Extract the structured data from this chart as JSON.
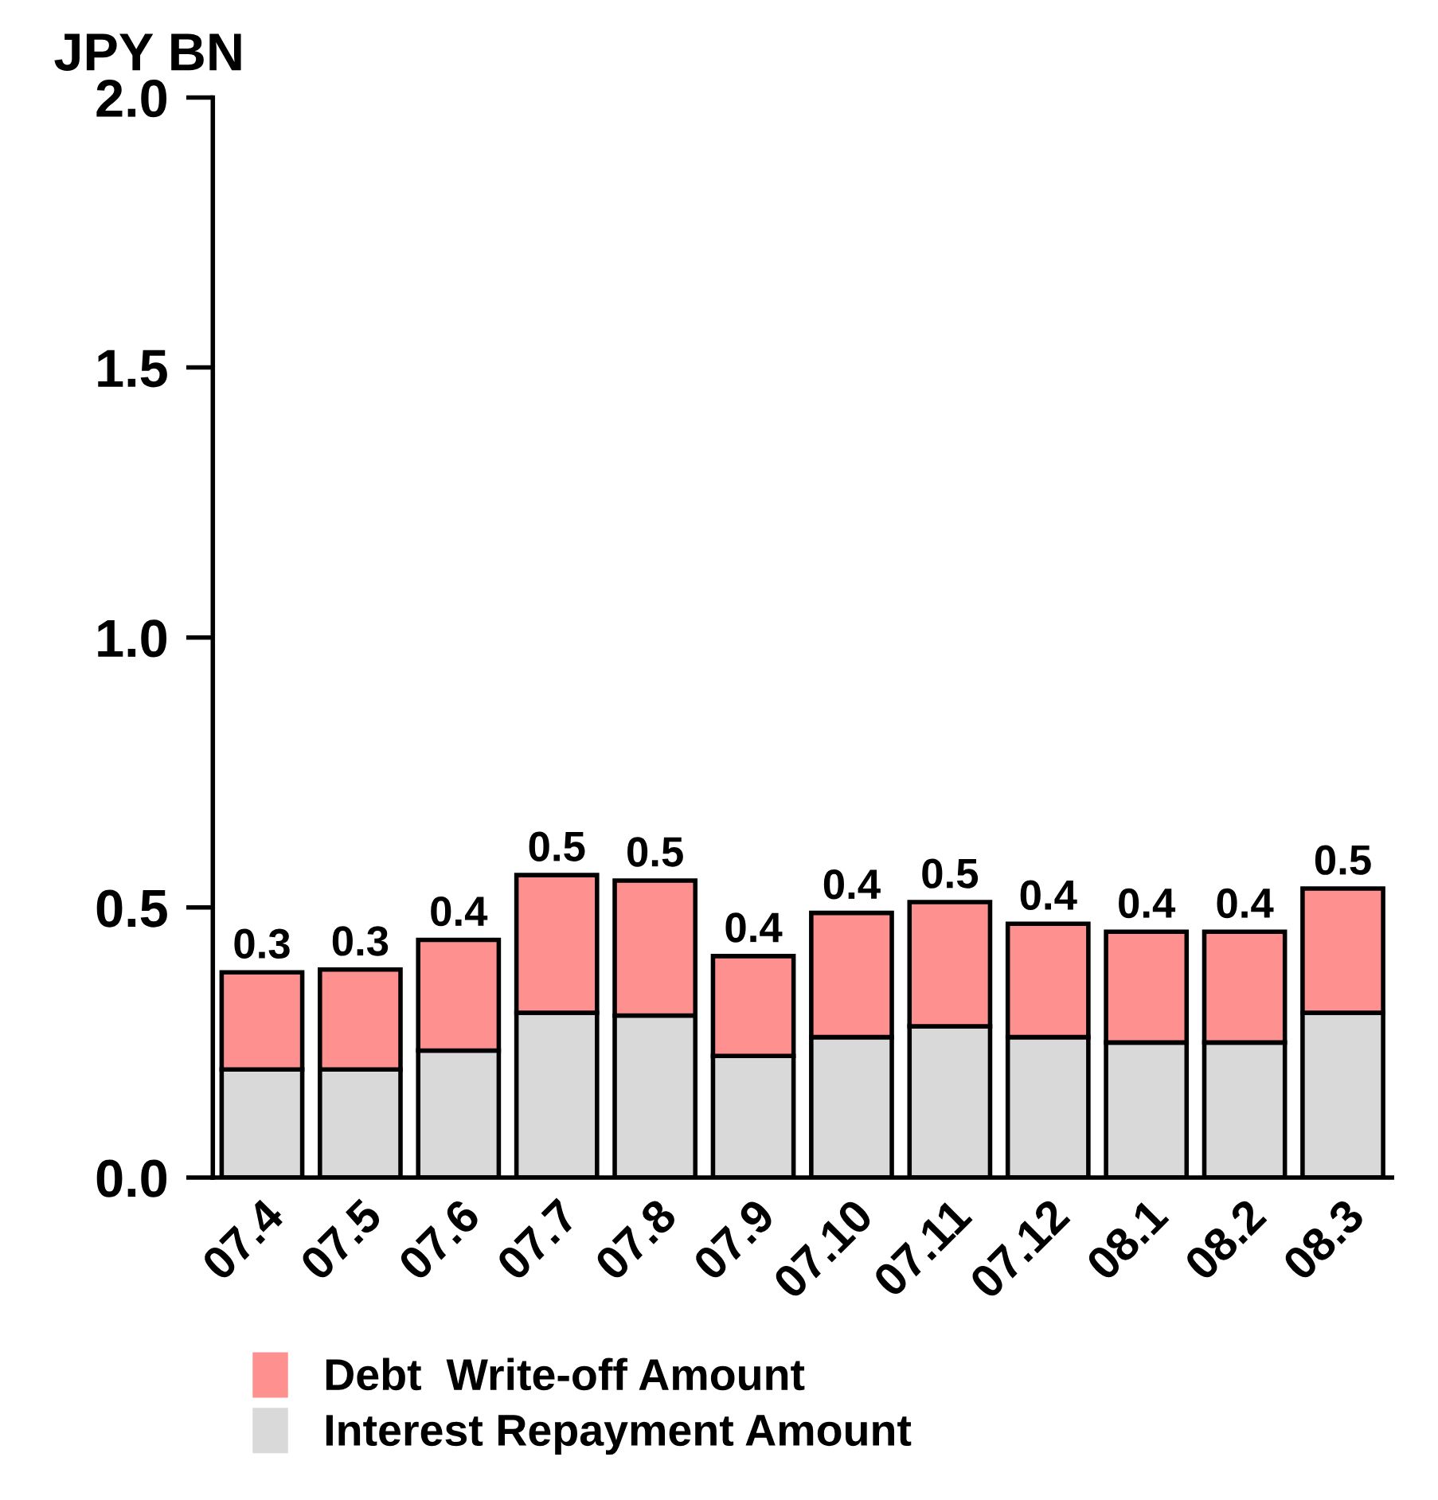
{
  "chart_data": {
    "type": "bar",
    "stacked": true,
    "ylabel": "JPY BN",
    "categories": [
      "07.4",
      "07.5",
      "07.6",
      "07.7",
      "07.8",
      "07.9",
      "07.10",
      "07.11",
      "07.12",
      "08.1",
      "08.2",
      "08.3"
    ],
    "series": [
      {
        "name": "Interest Repayment Amount",
        "color": "#d9d9d9",
        "values": [
          0.2,
          0.2,
          0.235,
          0.305,
          0.3,
          0.225,
          0.26,
          0.28,
          0.26,
          0.25,
          0.25,
          0.305
        ]
      },
      {
        "name": "Debt  Write-off Amount",
        "color": "#ff9090",
        "values": [
          0.18,
          0.185,
          0.205,
          0.255,
          0.25,
          0.185,
          0.23,
          0.23,
          0.21,
          0.205,
          0.205,
          0.23
        ]
      }
    ],
    "totals": [
      "0.3",
      "0.3",
      "0.4",
      "0.5",
      "0.5",
      "0.4",
      "0.4",
      "0.5",
      "0.4",
      "0.4",
      "0.4",
      "0.5"
    ],
    "ylim": [
      0,
      2.0
    ],
    "yticks": [
      {
        "value": 0,
        "label": "0.0"
      },
      {
        "value": 0.5,
        "label": "0.5"
      },
      {
        "value": 1.0,
        "label": "1.0"
      },
      {
        "value": 1.5,
        "label": "1.5"
      },
      {
        "value": 2.0,
        "label": "2.0"
      }
    ],
    "grid": false,
    "legend": "bottom"
  }
}
